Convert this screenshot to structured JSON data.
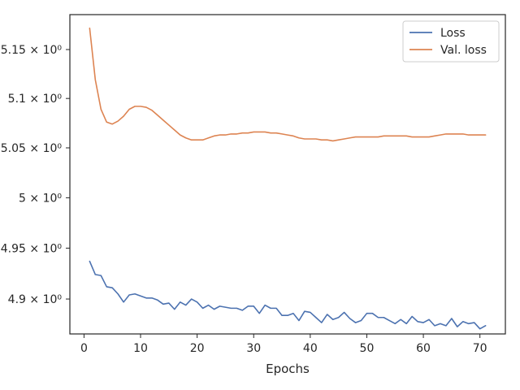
{
  "chart_data": {
    "type": "line",
    "xlabel": "Epochs",
    "ylabel": "",
    "y_scale": "log",
    "xlim": [
      -2.5,
      74.5
    ],
    "ylim": [
      4.866,
      5.186
    ],
    "x_ticks": [
      0,
      10,
      20,
      30,
      40,
      50,
      60,
      70
    ],
    "y_ticks": [
      4.9,
      4.95,
      5.0,
      5.05,
      5.1,
      5.15
    ],
    "y_tick_labels": [
      "4.9 × 10⁰",
      "4.95 × 10⁰",
      "5 × 10⁰",
      "5.05 × 10⁰",
      "5.1 × 10⁰",
      "5.15 × 10⁰"
    ],
    "grid": false,
    "legend_position": "top-right",
    "x": [
      1,
      2,
      3,
      4,
      5,
      6,
      7,
      8,
      9,
      10,
      11,
      12,
      13,
      14,
      15,
      16,
      17,
      18,
      19,
      20,
      21,
      22,
      23,
      24,
      25,
      26,
      27,
      28,
      29,
      30,
      31,
      32,
      33,
      34,
      35,
      36,
      37,
      38,
      39,
      40,
      41,
      42,
      43,
      44,
      45,
      46,
      47,
      48,
      49,
      50,
      51,
      52,
      53,
      54,
      55,
      56,
      57,
      58,
      59,
      60,
      61,
      62,
      63,
      64,
      65,
      66,
      67,
      68,
      69,
      70,
      71
    ],
    "series": [
      {
        "name": "Loss",
        "color": "#4c72b0",
        "values": [
          4.937,
          4.924,
          4.923,
          4.912,
          4.911,
          4.905,
          4.897,
          4.904,
          4.905,
          4.903,
          4.901,
          4.901,
          4.899,
          4.895,
          4.896,
          4.89,
          4.897,
          4.894,
          4.9,
          4.897,
          4.891,
          4.894,
          4.89,
          4.893,
          4.892,
          4.891,
          4.891,
          4.889,
          4.893,
          4.893,
          4.886,
          4.894,
          4.891,
          4.891,
          4.884,
          4.884,
          4.886,
          4.879,
          4.888,
          4.887,
          4.882,
          4.877,
          4.885,
          4.88,
          4.882,
          4.887,
          4.881,
          4.877,
          4.879,
          4.886,
          4.886,
          4.882,
          4.882,
          4.879,
          4.876,
          4.88,
          4.876,
          4.883,
          4.878,
          4.877,
          4.88,
          4.874,
          4.876,
          4.874,
          4.881,
          4.873,
          4.878,
          4.876,
          4.877,
          4.871,
          4.874
        ]
      },
      {
        "name": "Val. loss",
        "color": "#dd8452",
        "values": [
          5.172,
          5.119,
          5.089,
          5.076,
          5.074,
          5.077,
          5.082,
          5.089,
          5.092,
          5.092,
          5.091,
          5.088,
          5.083,
          5.078,
          5.073,
          5.068,
          5.063,
          5.06,
          5.058,
          5.058,
          5.058,
          5.06,
          5.062,
          5.063,
          5.063,
          5.064,
          5.064,
          5.065,
          5.065,
          5.066,
          5.066,
          5.066,
          5.065,
          5.065,
          5.064,
          5.063,
          5.062,
          5.06,
          5.059,
          5.059,
          5.059,
          5.058,
          5.058,
          5.057,
          5.058,
          5.059,
          5.06,
          5.061,
          5.061,
          5.061,
          5.061,
          5.061,
          5.062,
          5.062,
          5.062,
          5.062,
          5.062,
          5.061,
          5.061,
          5.061,
          5.061,
          5.062,
          5.063,
          5.064,
          5.064,
          5.064,
          5.064,
          5.063,
          5.063,
          5.063,
          5.063
        ]
      }
    ]
  }
}
